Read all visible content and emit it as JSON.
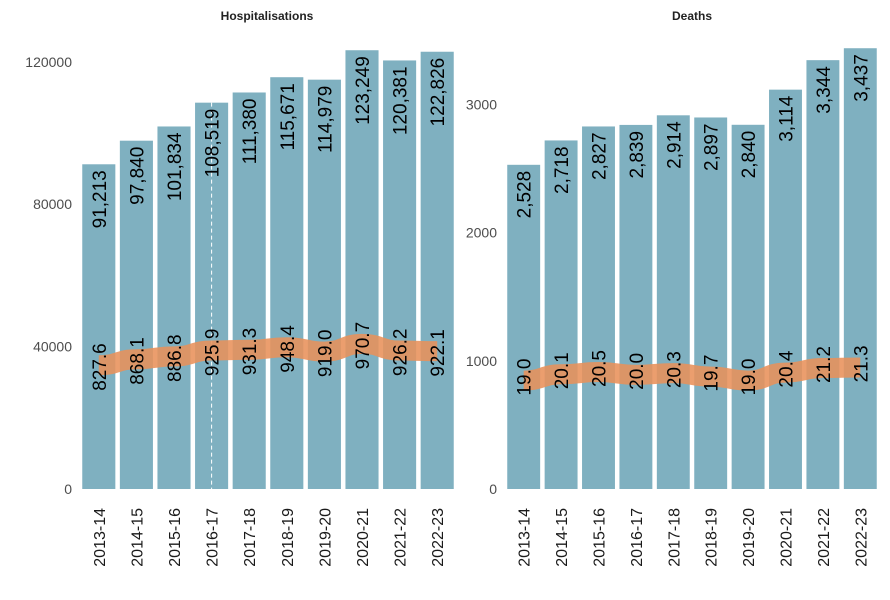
{
  "colors": {
    "bar": "#7fb0c0",
    "band": "#e8915a"
  },
  "chart_data": [
    {
      "type": "bar",
      "title": "Hospitalisations",
      "categories": [
        "2013-14",
        "2014-15",
        "2015-16",
        "2016-17",
        "2017-18",
        "2018-19",
        "2019-20",
        "2020-21",
        "2021-22",
        "2022-23"
      ],
      "values": [
        91213,
        97840,
        101834,
        108519,
        111380,
        115671,
        114979,
        123249,
        120381,
        122826
      ],
      "value_labels": [
        "91,213",
        "97,840",
        "101,834",
        "108,519",
        "111,380",
        "115,671",
        "114,979",
        "123,249",
        "120,381",
        "122,826"
      ],
      "rate_values": [
        827.6,
        868.1,
        886.8,
        925.9,
        931.3,
        948.4,
        919.0,
        970.7,
        926.2,
        922.1
      ],
      "rate_labels": [
        "827.6",
        "868.1",
        "886.8",
        "925.9",
        "931.3",
        "948.4",
        "919.0",
        "970.7",
        "926.2",
        "922.1"
      ],
      "rate_scale": 42,
      "ylim": [
        0,
        125000
      ],
      "yticks": [
        0,
        40000,
        80000,
        120000
      ],
      "ytick_labels": [
        "0",
        "40000",
        "80000",
        "120000"
      ],
      "marker_category": "2016-17",
      "xlabel": "",
      "ylabel": ""
    },
    {
      "type": "bar",
      "title": "Deaths",
      "categories": [
        "2013-14",
        "2014-15",
        "2015-16",
        "2016-17",
        "2017-18",
        "2018-19",
        "2019-20",
        "2020-21",
        "2021-22",
        "2022-23"
      ],
      "values": [
        2528,
        2718,
        2827,
        2839,
        2914,
        2897,
        2840,
        3114,
        3344,
        3437
      ],
      "value_labels": [
        "2,528",
        "2,718",
        "2,827",
        "2,839",
        "2,914",
        "2,897",
        "2,840",
        "3,114",
        "3,344",
        "3,437"
      ],
      "rate_values": [
        19.0,
        20.1,
        20.5,
        20.0,
        20.3,
        19.7,
        19.0,
        20.4,
        21.2,
        21.3
      ],
      "rate_labels": [
        "19.0",
        "20.1",
        "20.5",
        "20.0",
        "20.3",
        "19.7",
        "19.0",
        "20.4",
        "21.2",
        "21.3"
      ],
      "rate_scale": 44.5,
      "ylim": [
        0,
        3470
      ],
      "yticks": [
        0,
        1000,
        2000,
        3000
      ],
      "ytick_labels": [
        "0",
        "1000",
        "2000",
        "3000"
      ],
      "xlabel": "",
      "ylabel": ""
    }
  ]
}
